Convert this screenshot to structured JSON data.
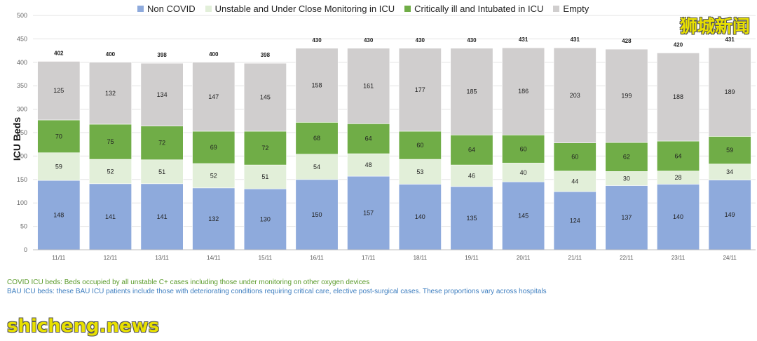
{
  "colors": {
    "non_covid": "#8eaadc",
    "unstable": "#e2efd9",
    "critical": "#70ad47",
    "empty": "#d0cece"
  },
  "notes": {
    "covid": "COVID ICU beds: Beds occupied by all unstable C+ cases including those under monitoring on other oxygen devices",
    "bau": "BAU ICU beds: these BAU ICU patients include those with deteriorating conditions requiring critical care, elective post-surgical cases. These proportions vary across hospitals"
  },
  "watermarks": {
    "cn": "狮城新闻",
    "en": "shicheng.news"
  },
  "chart_data": {
    "type": "bar",
    "stacked": true,
    "ylabel": "ICU Beds",
    "ylim": [
      0,
      500
    ],
    "yticks": [
      0,
      50,
      100,
      150,
      200,
      250,
      300,
      350,
      400,
      450,
      500
    ],
    "legend_position": "top",
    "grid": true,
    "categories": [
      "11/11",
      "12/11",
      "13/11",
      "14/11",
      "15/11",
      "16/11",
      "17/11",
      "18/11",
      "19/11",
      "20/11",
      "21/11",
      "22/11",
      "23/11",
      "24/11"
    ],
    "series": [
      {
        "name": "Non COVID",
        "values": [
          148,
          141,
          141,
          132,
          130,
          150,
          157,
          140,
          135,
          145,
          124,
          137,
          140,
          149
        ]
      },
      {
        "name": "Unstable and Under Close Monitoring in ICU",
        "values": [
          59,
          52,
          51,
          52,
          51,
          54,
          48,
          53,
          46,
          40,
          44,
          30,
          28,
          34
        ]
      },
      {
        "name": "Critically ill and Intubated in ICU",
        "values": [
          70,
          75,
          72,
          69,
          72,
          68,
          64,
          60,
          64,
          60,
          60,
          62,
          64,
          59
        ]
      },
      {
        "name": "Empty",
        "values": [
          125,
          132,
          134,
          147,
          145,
          158,
          161,
          177,
          185,
          186,
          203,
          199,
          188,
          189
        ]
      }
    ],
    "totals": [
      402,
      400,
      398,
      400,
      398,
      430,
      430,
      430,
      430,
      431,
      431,
      428,
      420,
      431
    ]
  }
}
